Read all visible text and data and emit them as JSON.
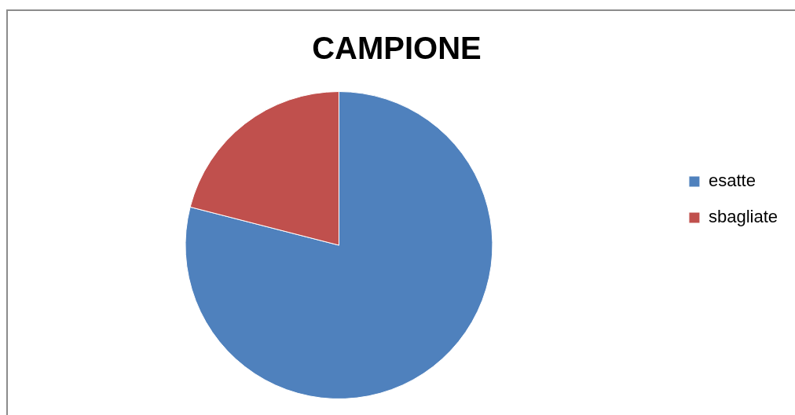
{
  "chart_data": {
    "type": "pie",
    "title": "CAMPIONE",
    "categories": [
      "esatte",
      "sbagliate"
    ],
    "values": [
      79,
      21
    ],
    "colors": [
      "#4f81bd",
      "#c0504d"
    ],
    "legend": "right"
  }
}
